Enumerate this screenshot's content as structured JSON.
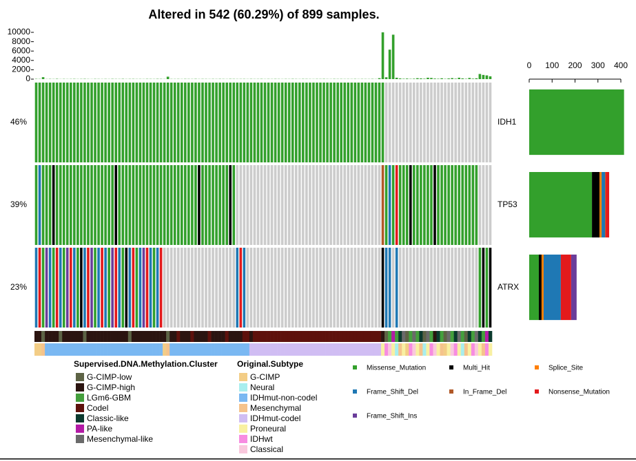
{
  "chart_data": {
    "type": "oncoplot",
    "title": "Altered in 542 (60.29%) of 899 samples.",
    "genes": [
      "IDH1",
      "TP53",
      "ATRX"
    ],
    "gene_percent_labels": [
      "46%",
      "39%",
      "23%"
    ],
    "no_alteration_color": "#cccccc",
    "cells": [
      [
        0,
        0,
        0,
        0,
        0,
        0,
        0,
        0,
        0,
        0,
        0,
        0,
        0,
        0,
        0,
        0,
        0,
        0,
        0,
        0,
        0,
        0,
        0,
        0,
        0,
        0,
        0,
        0,
        0,
        0,
        0,
        0,
        0,
        0,
        0,
        0,
        0,
        0,
        0,
        0,
        0,
        0,
        0,
        0,
        0,
        0,
        0,
        0,
        0,
        0,
        0,
        0,
        0,
        0,
        0,
        0,
        0,
        0,
        0,
        0,
        0,
        0,
        0,
        0,
        0,
        0,
        0,
        0,
        0,
        0,
        0,
        0,
        0,
        0,
        0,
        0,
        0,
        0,
        0,
        0,
        0,
        0,
        0,
        0,
        0,
        0,
        0,
        0,
        0,
        0,
        0,
        0,
        0,
        0,
        0,
        0,
        0,
        0,
        0,
        0,
        0,
        null,
        null,
        null,
        null,
        null,
        null,
        null,
        null,
        null,
        null,
        null,
        null,
        null,
        null,
        null,
        null,
        null,
        null,
        null,
        null,
        null,
        null,
        null,
        null,
        null,
        null,
        null,
        null,
        null,
        null,
        null
      ],
      [
        0,
        3,
        0,
        0,
        0,
        1,
        0,
        0,
        0,
        0,
        0,
        0,
        0,
        0,
        0,
        0,
        0,
        0,
        0,
        0,
        0,
        0,
        0,
        1,
        0,
        0,
        0,
        0,
        0,
        0,
        0,
        0,
        0,
        0,
        0,
        0,
        0,
        0,
        0,
        0,
        0,
        0,
        0,
        0,
        0,
        0,
        0,
        1,
        0,
        0,
        0,
        0,
        0,
        0,
        0,
        0,
        1,
        0,
        null,
        null,
        null,
        null,
        null,
        null,
        null,
        null,
        null,
        null,
        null,
        null,
        null,
        null,
        null,
        null,
        null,
        null,
        null,
        null,
        null,
        null,
        null,
        null,
        null,
        null,
        null,
        null,
        null,
        null,
        null,
        null,
        null,
        null,
        null,
        null,
        null,
        null,
        null,
        null,
        null,
        null,
        4,
        0,
        3,
        0,
        5,
        0,
        0,
        0,
        1,
        0,
        0,
        0,
        0,
        0,
        0,
        1,
        0,
        0,
        0,
        0,
        0,
        0,
        0,
        0,
        0,
        0,
        0,
        0,
        null,
        null,
        null,
        null
      ],
      [
        3,
        5,
        0,
        6,
        3,
        0,
        5,
        3,
        0,
        6,
        5,
        3,
        0,
        1,
        3,
        5,
        6,
        0,
        3,
        5,
        3,
        0,
        6,
        5,
        3,
        0,
        1,
        3,
        5,
        0,
        3,
        6,
        5,
        3,
        0,
        3,
        5,
        null,
        null,
        null,
        null,
        null,
        null,
        null,
        null,
        null,
        null,
        null,
        null,
        null,
        null,
        null,
        null,
        null,
        null,
        null,
        null,
        null,
        3,
        5,
        3,
        null,
        null,
        null,
        null,
        null,
        null,
        null,
        null,
        null,
        null,
        null,
        null,
        null,
        null,
        null,
        null,
        null,
        null,
        null,
        null,
        null,
        null,
        null,
        null,
        null,
        null,
        null,
        null,
        null,
        null,
        null,
        null,
        null,
        null,
        null,
        null,
        null,
        null,
        null,
        1,
        3,
        3,
        null,
        3,
        null,
        null,
        null,
        null,
        null,
        null,
        null,
        null,
        null,
        null,
        null,
        null,
        null,
        null,
        null,
        null,
        null,
        null,
        null,
        null,
        null,
        null,
        null,
        0,
        1,
        0,
        1
      ]
    ],
    "tmb": {
      "color": "#33a02c",
      "ylim": [
        0,
        10000
      ],
      "yticks": [
        0,
        2000,
        4000,
        6000,
        8000,
        10000
      ],
      "values": [
        60,
        40,
        420,
        30,
        50,
        35,
        70,
        25,
        45,
        30,
        40,
        55,
        30,
        45,
        60,
        35,
        25,
        50,
        40,
        30,
        45,
        30,
        55,
        40,
        35,
        60,
        30,
        45,
        50,
        35,
        40,
        30,
        55,
        45,
        35,
        60,
        50,
        30,
        520,
        40,
        35,
        45,
        30,
        50,
        40,
        35,
        55,
        30,
        45,
        40,
        30,
        45,
        35,
        50,
        40,
        30,
        55,
        45,
        35,
        40,
        45,
        30,
        50,
        35,
        40,
        55,
        30,
        45,
        35,
        50,
        40,
        30,
        45,
        35,
        55,
        40,
        30,
        50,
        45,
        35,
        30,
        45,
        40,
        55,
        35,
        30,
        50,
        40,
        45,
        35,
        40,
        35,
        50,
        30,
        45,
        40,
        35,
        55,
        30,
        200,
        10000,
        400,
        6300,
        9500,
        300,
        150,
        80,
        120,
        60,
        90,
        200,
        150,
        90,
        300,
        250,
        120,
        80,
        180,
        60,
        140,
        220,
        90,
        300,
        160,
        70,
        250,
        100,
        180,
        1100,
        900,
        800,
        600
      ]
    },
    "gene_bars": {
      "xlim": [
        0,
        400
      ],
      "xticks": [
        0,
        100,
        200,
        300,
        400
      ]
    },
    "series": [
      {
        "name": "Missense_Mutation",
        "color": "#33a02c",
        "values": [
          414,
          274,
          42
        ]
      },
      {
        "name": "Multi_Hit",
        "color": "#000000",
        "values": [
          0,
          33,
          12
        ]
      },
      {
        "name": "Splice_Site",
        "color": "#ff7f00",
        "values": [
          0,
          9,
          9
        ]
      },
      {
        "name": "Frame_Shift_Del",
        "color": "#1f78b4",
        "values": [
          0,
          15,
          75
        ]
      },
      {
        "name": "In_Frame_Del",
        "color": "#b15928",
        "values": [
          0,
          3,
          0
        ]
      },
      {
        "name": "Nonsense_Mutation",
        "color": "#e31a1c",
        "values": [
          0,
          15,
          45
        ]
      },
      {
        "name": "Frame_Shift_Ins",
        "color": "#6a3d9a",
        "values": [
          0,
          0,
          24
        ]
      }
    ],
    "annotations": [
      {
        "title": "Supervised.DNA.Methylation.Cluster",
        "levels": [
          {
            "name": "G-CIMP-low",
            "color": "#5d6345"
          },
          {
            "name": "G-CIMP-high",
            "color": "#2b1410"
          },
          {
            "name": "LGm6-GBM",
            "color": "#449f3c"
          },
          {
            "name": "Codel",
            "color": "#5e110c"
          },
          {
            "name": "Classic-like",
            "color": "#0b3a2e"
          },
          {
            "name": "PA-like",
            "color": "#b31ba6"
          },
          {
            "name": "Mesenchymal-like",
            "color": "#6a6a6a"
          }
        ],
        "values": [
          1,
          1,
          0,
          1,
          1,
          1,
          1,
          0,
          1,
          1,
          1,
          1,
          1,
          1,
          0,
          1,
          1,
          1,
          1,
          1,
          1,
          1,
          1,
          1,
          1,
          1,
          1,
          0,
          1,
          1,
          1,
          1,
          1,
          1,
          1,
          1,
          1,
          1,
          0,
          1,
          1,
          3,
          1,
          1,
          1,
          3,
          1,
          1,
          1,
          1,
          3,
          1,
          1,
          1,
          1,
          3,
          1,
          1,
          1,
          1,
          3,
          3,
          1,
          3,
          3,
          3,
          3,
          3,
          3,
          3,
          3,
          3,
          3,
          3,
          3,
          3,
          3,
          3,
          3,
          3,
          3,
          3,
          3,
          3,
          3,
          3,
          3,
          3,
          3,
          3,
          3,
          3,
          3,
          3,
          3,
          3,
          3,
          3,
          3,
          3,
          1,
          0,
          2,
          5,
          2,
          4,
          6,
          0,
          2,
          6,
          2,
          4,
          0,
          6,
          2,
          1,
          4,
          2,
          0,
          6,
          2,
          4,
          6,
          2,
          0,
          4,
          2,
          6,
          4,
          2,
          5,
          4
        ]
      },
      {
        "title": "Original.Subtype",
        "levels": [
          {
            "name": "G-CIMP",
            "color": "#f3cd86"
          },
          {
            "name": "Neural",
            "color": "#a8eeee"
          },
          {
            "name": "IDHmut-non-codel",
            "color": "#7ab8f2"
          },
          {
            "name": "Mesenchymal",
            "color": "#f5c38c"
          },
          {
            "name": "IDHmut-codel",
            "color": "#d0bdf3"
          },
          {
            "name": "Proneural",
            "color": "#f8f0a2"
          },
          {
            "name": "IDHwt",
            "color": "#f78ce1"
          },
          {
            "name": "Classical",
            "color": "#f9c8dd"
          }
        ],
        "values": [
          0,
          0,
          3,
          2,
          2,
          2,
          2,
          2,
          2,
          2,
          2,
          2,
          2,
          2,
          2,
          2,
          2,
          2,
          2,
          2,
          2,
          2,
          2,
          2,
          2,
          2,
          2,
          2,
          2,
          2,
          2,
          2,
          2,
          2,
          2,
          2,
          2,
          0,
          3,
          2,
          2,
          2,
          2,
          2,
          2,
          2,
          2,
          2,
          2,
          2,
          2,
          2,
          2,
          2,
          2,
          2,
          2,
          2,
          2,
          2,
          2,
          2,
          4,
          4,
          4,
          4,
          4,
          4,
          4,
          4,
          4,
          4,
          4,
          4,
          4,
          4,
          4,
          4,
          4,
          4,
          4,
          4,
          4,
          4,
          4,
          4,
          4,
          4,
          4,
          4,
          4,
          4,
          4,
          4,
          4,
          4,
          4,
          4,
          4,
          4,
          5,
          6,
          7,
          5,
          1,
          3,
          5,
          0,
          6,
          7,
          5,
          3,
          1,
          5,
          6,
          7,
          5,
          3,
          0,
          5,
          7,
          6,
          5,
          1,
          3,
          5,
          6,
          7,
          5,
          3,
          6,
          5
        ]
      }
    ]
  }
}
